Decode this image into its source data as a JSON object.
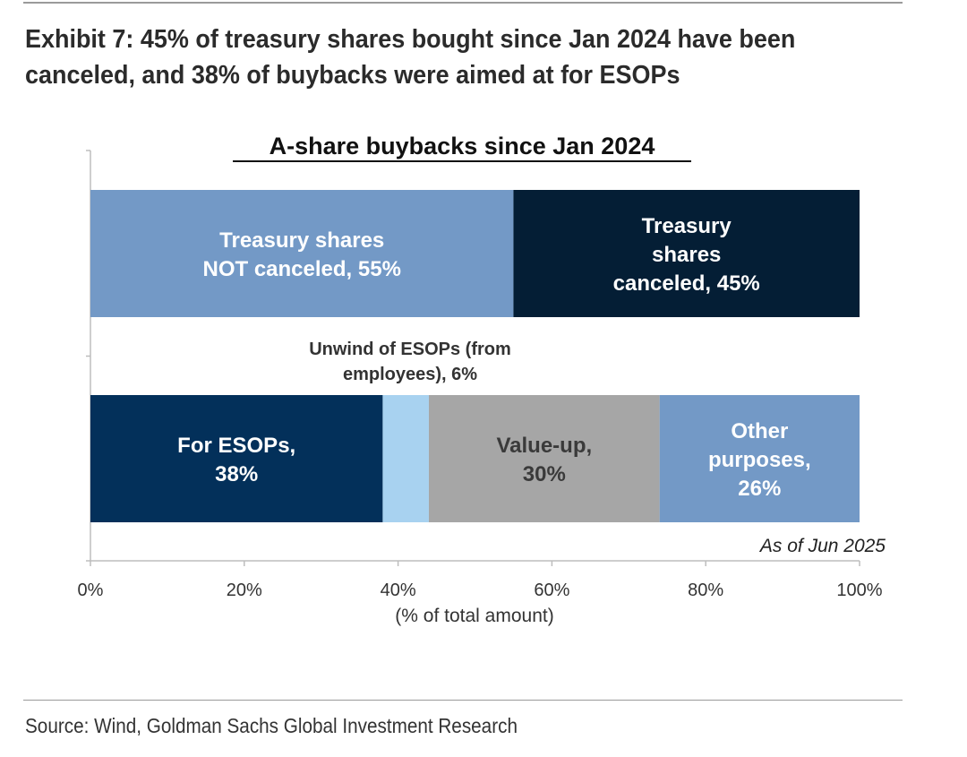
{
  "exhibit": {
    "title_line1": "Exhibit 7: 45% of treasury shares bought since Jan 2024 have been",
    "title_line2": "canceled, and 38% of buybacks were aimed at for ESOPs",
    "source": "Source: Wind, Goldman Sachs Global Investment Research"
  },
  "chart_data": {
    "type": "bar",
    "orientation": "horizontal",
    "stacked": true,
    "title": "A-share buybacks since Jan 2024",
    "xlabel": "(% of total amount)",
    "xlim": [
      0,
      100
    ],
    "xticks": [
      "0%",
      "20%",
      "40%",
      "60%",
      "80%",
      "100%"
    ],
    "annotation": "As of Jun 2025",
    "grid": false,
    "legend": "none",
    "rows": [
      {
        "segments": [
          {
            "label_lines": [
              "Treasury shares",
              "NOT canceled, 55%"
            ],
            "value": 55,
            "color": "#7399c6",
            "text_color": "#ffffff"
          },
          {
            "label_lines": [
              "Treasury",
              "shares",
              "canceled, 45%"
            ],
            "value": 45,
            "color": "#041e35",
            "text_color": "#ffffff"
          }
        ]
      },
      {
        "segments": [
          {
            "label_lines": [
              "For ESOPs,",
              "38%"
            ],
            "value": 38,
            "color": "#03305a",
            "text_color": "#ffffff"
          },
          {
            "label_lines": [
              "Unwind of ESOPs (from",
              "employees), 6%"
            ],
            "value": 6,
            "color": "#a8d2f0",
            "text_color": "#333333",
            "label_position": "above"
          },
          {
            "label_lines": [
              "Value-up,",
              "30%"
            ],
            "value": 30,
            "color": "#a6a6a6",
            "text_color": "#3a3a3a"
          },
          {
            "label_lines": [
              "Other",
              "purposes,",
              "26%"
            ],
            "value": 26,
            "color": "#7399c6",
            "text_color": "#ffffff"
          }
        ]
      }
    ]
  }
}
